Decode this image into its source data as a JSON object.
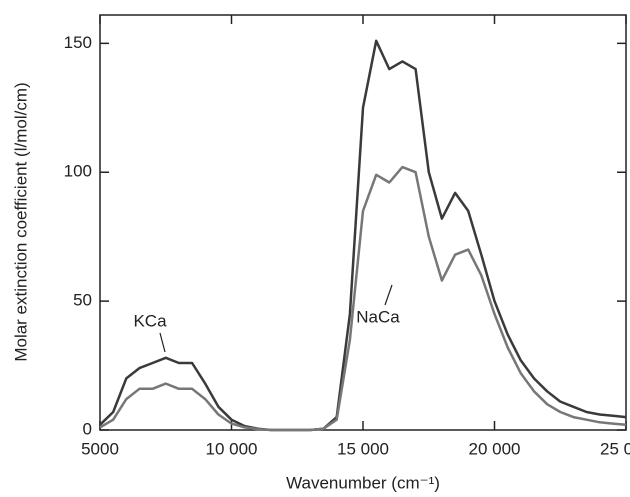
{
  "chart_data": {
    "type": "line",
    "x_label": "Wavenumber (cm⁻¹)",
    "y_label": "Molar extinction coefficient (l/mol/cm)",
    "x": [
      5000,
      5500,
      6000,
      6500,
      7000,
      7500,
      8000,
      8500,
      9000,
      9500,
      10000,
      10500,
      11000,
      11500,
      12000,
      12500,
      13000,
      13500,
      14000,
      14500,
      15000,
      15500,
      16000,
      16500,
      17000,
      17500,
      18000,
      18500,
      19000,
      19500,
      20000,
      20500,
      21000,
      21500,
      22000,
      22500,
      23000,
      23500,
      24000,
      24500,
      25000
    ],
    "series": [
      {
        "name": "KCa",
        "color": "#3a3a3a",
        "values": [
          2,
          7,
          20,
          24,
          26,
          28,
          26,
          26,
          18,
          9,
          4,
          1.5,
          0.5,
          0,
          0,
          0,
          0,
          0.5,
          5,
          45,
          125,
          151,
          140,
          143,
          140,
          100,
          82,
          92,
          85,
          68,
          50,
          37,
          27,
          20,
          15,
          11,
          9,
          7,
          6,
          5.5,
          5
        ]
      },
      {
        "name": "NaCa",
        "color": "#777777",
        "values": [
          1,
          4,
          12,
          16,
          16,
          18,
          16,
          16,
          12,
          6,
          2.5,
          1,
          0.3,
          0,
          0,
          0,
          0,
          0.5,
          4,
          35,
          85,
          99,
          96,
          102,
          100,
          75,
          58,
          68,
          70,
          60,
          45,
          32,
          22,
          15,
          10,
          7,
          5,
          4,
          3,
          2.5,
          2
        ]
      }
    ],
    "xlim": [
      5000,
      25000
    ],
    "xticks": [
      5000,
      {
        "value": 10000,
        "label": "10 000"
      },
      {
        "value": 15000,
        "label": "15 000"
      },
      {
        "value": 20000,
        "label": "20 000"
      },
      {
        "value": 25000,
        "label": "25 000"
      }
    ],
    "ylim": [
      0,
      161
    ],
    "yticks": [
      0,
      50,
      100,
      150
    ],
    "grid": false
  }
}
